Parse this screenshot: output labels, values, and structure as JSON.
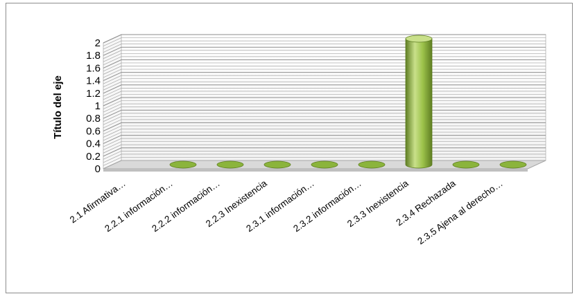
{
  "chart_data": {
    "type": "bar",
    "style": "3d-cylinder",
    "ylabel": "Título del eje",
    "xlabel": "",
    "ylim": [
      0,
      2
    ],
    "yticks": [
      "0",
      "0.2",
      "0.4",
      "0.6",
      "0.8",
      "1",
      "1.2",
      "1.4",
      "1.6",
      "1.8",
      "2"
    ],
    "categories": [
      "2.1 Afirmativa…",
      "2.2.1 información…",
      "2.2.2  información…",
      "2.2.3 Inexistencia",
      "2.3.1  información…",
      "2.3.2  información…",
      "2.3.3 Inexistencia",
      "2.3.4 Rechazada",
      "2.3.5 Ajena al derecho…"
    ],
    "values": [
      0,
      0,
      0,
      0,
      0,
      0,
      2,
      0,
      0
    ],
    "grid": true,
    "legend": "none",
    "colors": {
      "bar": "#8bb43c",
      "bar_light": "#c9e08a",
      "bar_dark": "#5e7d22",
      "grid": "#a6a6a6",
      "floor": "#d9d9d9"
    }
  }
}
